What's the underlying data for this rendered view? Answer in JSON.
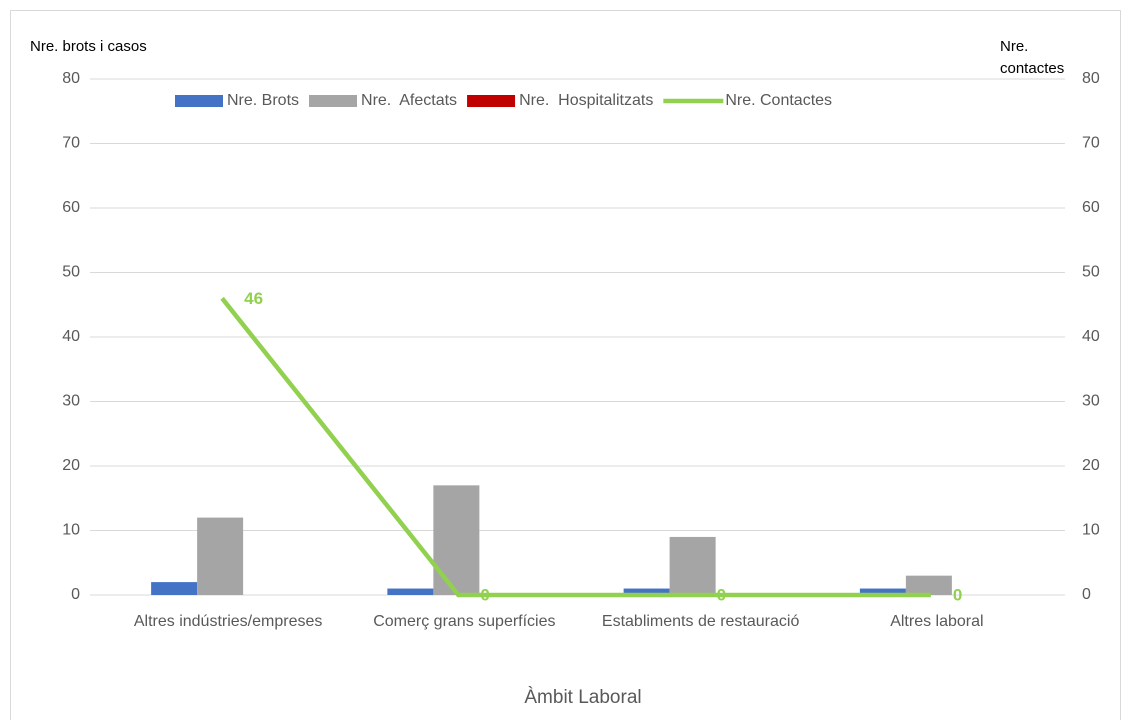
{
  "chart_data": {
    "type": "bar_line",
    "y_label": "Nre. brots i casos",
    "y2_label": "Nre. contactes",
    "x_label": "Àmbit Laboral",
    "categories": [
      "Altres indústries/empreses",
      "Comerç grans superfícies",
      "Establiments de restauració",
      "Altres laboral"
    ],
    "series": [
      {
        "name": "Nre. Brots",
        "color": "#4472c4",
        "type": "bar",
        "values": [
          2,
          1,
          1,
          1
        ]
      },
      {
        "name": "Nre.  Afectats",
        "color": "#a5a5a5",
        "type": "bar",
        "values": [
          12,
          17,
          9,
          3
        ]
      },
      {
        "name": "Nre.  Hospitalitzats",
        "color": "#c00000",
        "type": "bar",
        "values": [
          0,
          0,
          0,
          0
        ]
      },
      {
        "name": "Nre. Contactes",
        "color": "#92d050",
        "type": "line",
        "axis": "y2",
        "values": [
          46,
          0,
          0,
          0
        ]
      }
    ],
    "ylim": [
      0,
      80
    ],
    "yticks": [
      0,
      10,
      20,
      30,
      40,
      50,
      60,
      70,
      80
    ],
    "y2lim": [
      0,
      80
    ],
    "y2ticks": [
      0,
      10,
      20,
      30,
      40,
      50,
      60,
      70,
      80
    ],
    "grid": true,
    "legend": "top"
  }
}
